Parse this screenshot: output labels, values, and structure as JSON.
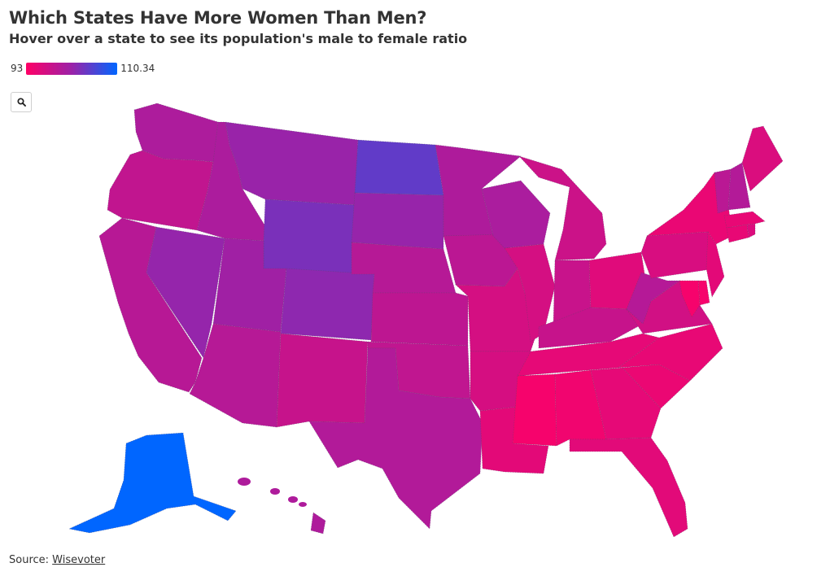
{
  "title": "Which States Have More Women Than Men?",
  "subtitle": "Hover over a state to see its population's male to female ratio",
  "legend": {
    "min_label": "93",
    "max_label": "110.34",
    "color_low": "#ff0066",
    "color_mid": "#9b22a8",
    "color_high": "#0066ff"
  },
  "zoom_icon": "search-icon",
  "source": {
    "prefix": "Source:",
    "link_text": "Wisevoter"
  },
  "chart_data": {
    "type": "choropleth",
    "metric": "male to female ratio",
    "scale": {
      "min": 93,
      "max": 110.34
    },
    "values": {
      "Washington": 100.1,
      "Oregon": 98.4,
      "California": 99.2,
      "Nevada": 102.0,
      "Idaho": 100.2,
      "Montana": 101.8,
      "Wyoming": 103.5,
      "Utah": 101.2,
      "Colorado": 102.4,
      "Arizona": 99.3,
      "New Mexico": 97.9,
      "North Dakota": 104.9,
      "South Dakota": 101.9,
      "Nebraska": 99.3,
      "Kansas": 98.7,
      "Oklahoma": 98.5,
      "Texas": 99.7,
      "Minnesota": 100.0,
      "Iowa": 98.9,
      "Missouri": 96.7,
      "Arkansas": 96.6,
      "Louisiana": 95.4,
      "Wisconsin": 100.3,
      "Illinois": 96.7,
      "Michigan": 97.5,
      "Indiana": 97.8,
      "Ohio": 95.7,
      "Kentucky": 97.9,
      "Tennessee": 95.2,
      "Mississippi": 93.8,
      "Alabama": 94.2,
      "Georgia": 95.2,
      "Florida": 95.5,
      "South Carolina": 94.7,
      "North Carolina": 95.0,
      "Virginia": 97.0,
      "West Virginia": 99.4,
      "Pennsylvania": 96.4,
      "New York": 94.8,
      "New Jersey": 95.4,
      "Delaware": 93.8,
      "Maryland": 93.8,
      "Connecticut": 95.0,
      "Rhode Island": 96.0,
      "Massachusetts": 95.0,
      "Vermont": 99.0,
      "New Hampshire": 99.6,
      "Maine": 96.2,
      "Alaska": 110.34,
      "Hawaii": 100.0
    }
  }
}
